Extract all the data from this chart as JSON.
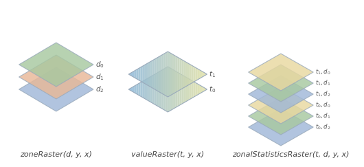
{
  "label1": "zoneRaster(d, y, x)",
  "label2": "valueRaster(t, y, x)",
  "label3": "zonalStatisticsRaster(t, d, y, x)",
  "bg_color": "#ffffff",
  "zone_colors": [
    "#a8c8a0",
    "#e8b898",
    "#a0b8d8"
  ],
  "zone_labels": [
    "$d_0$",
    "$d_1$",
    "$d_2$"
  ],
  "value_labels": [
    "$t_1$",
    "$t_0$"
  ],
  "zonal_colors": [
    "#e8d8a0",
    "#a8c8a0",
    "#a0b8d8",
    "#e8d8a0",
    "#a8c8a0",
    "#a0b8d8"
  ],
  "zonal_labels": [
    "$t_1, d_0$",
    "$t_1, d_1$",
    "$t_1, d_2$",
    "$t_0, d_0$",
    "$t_0, d_1$",
    "$t_0, d_2$"
  ]
}
